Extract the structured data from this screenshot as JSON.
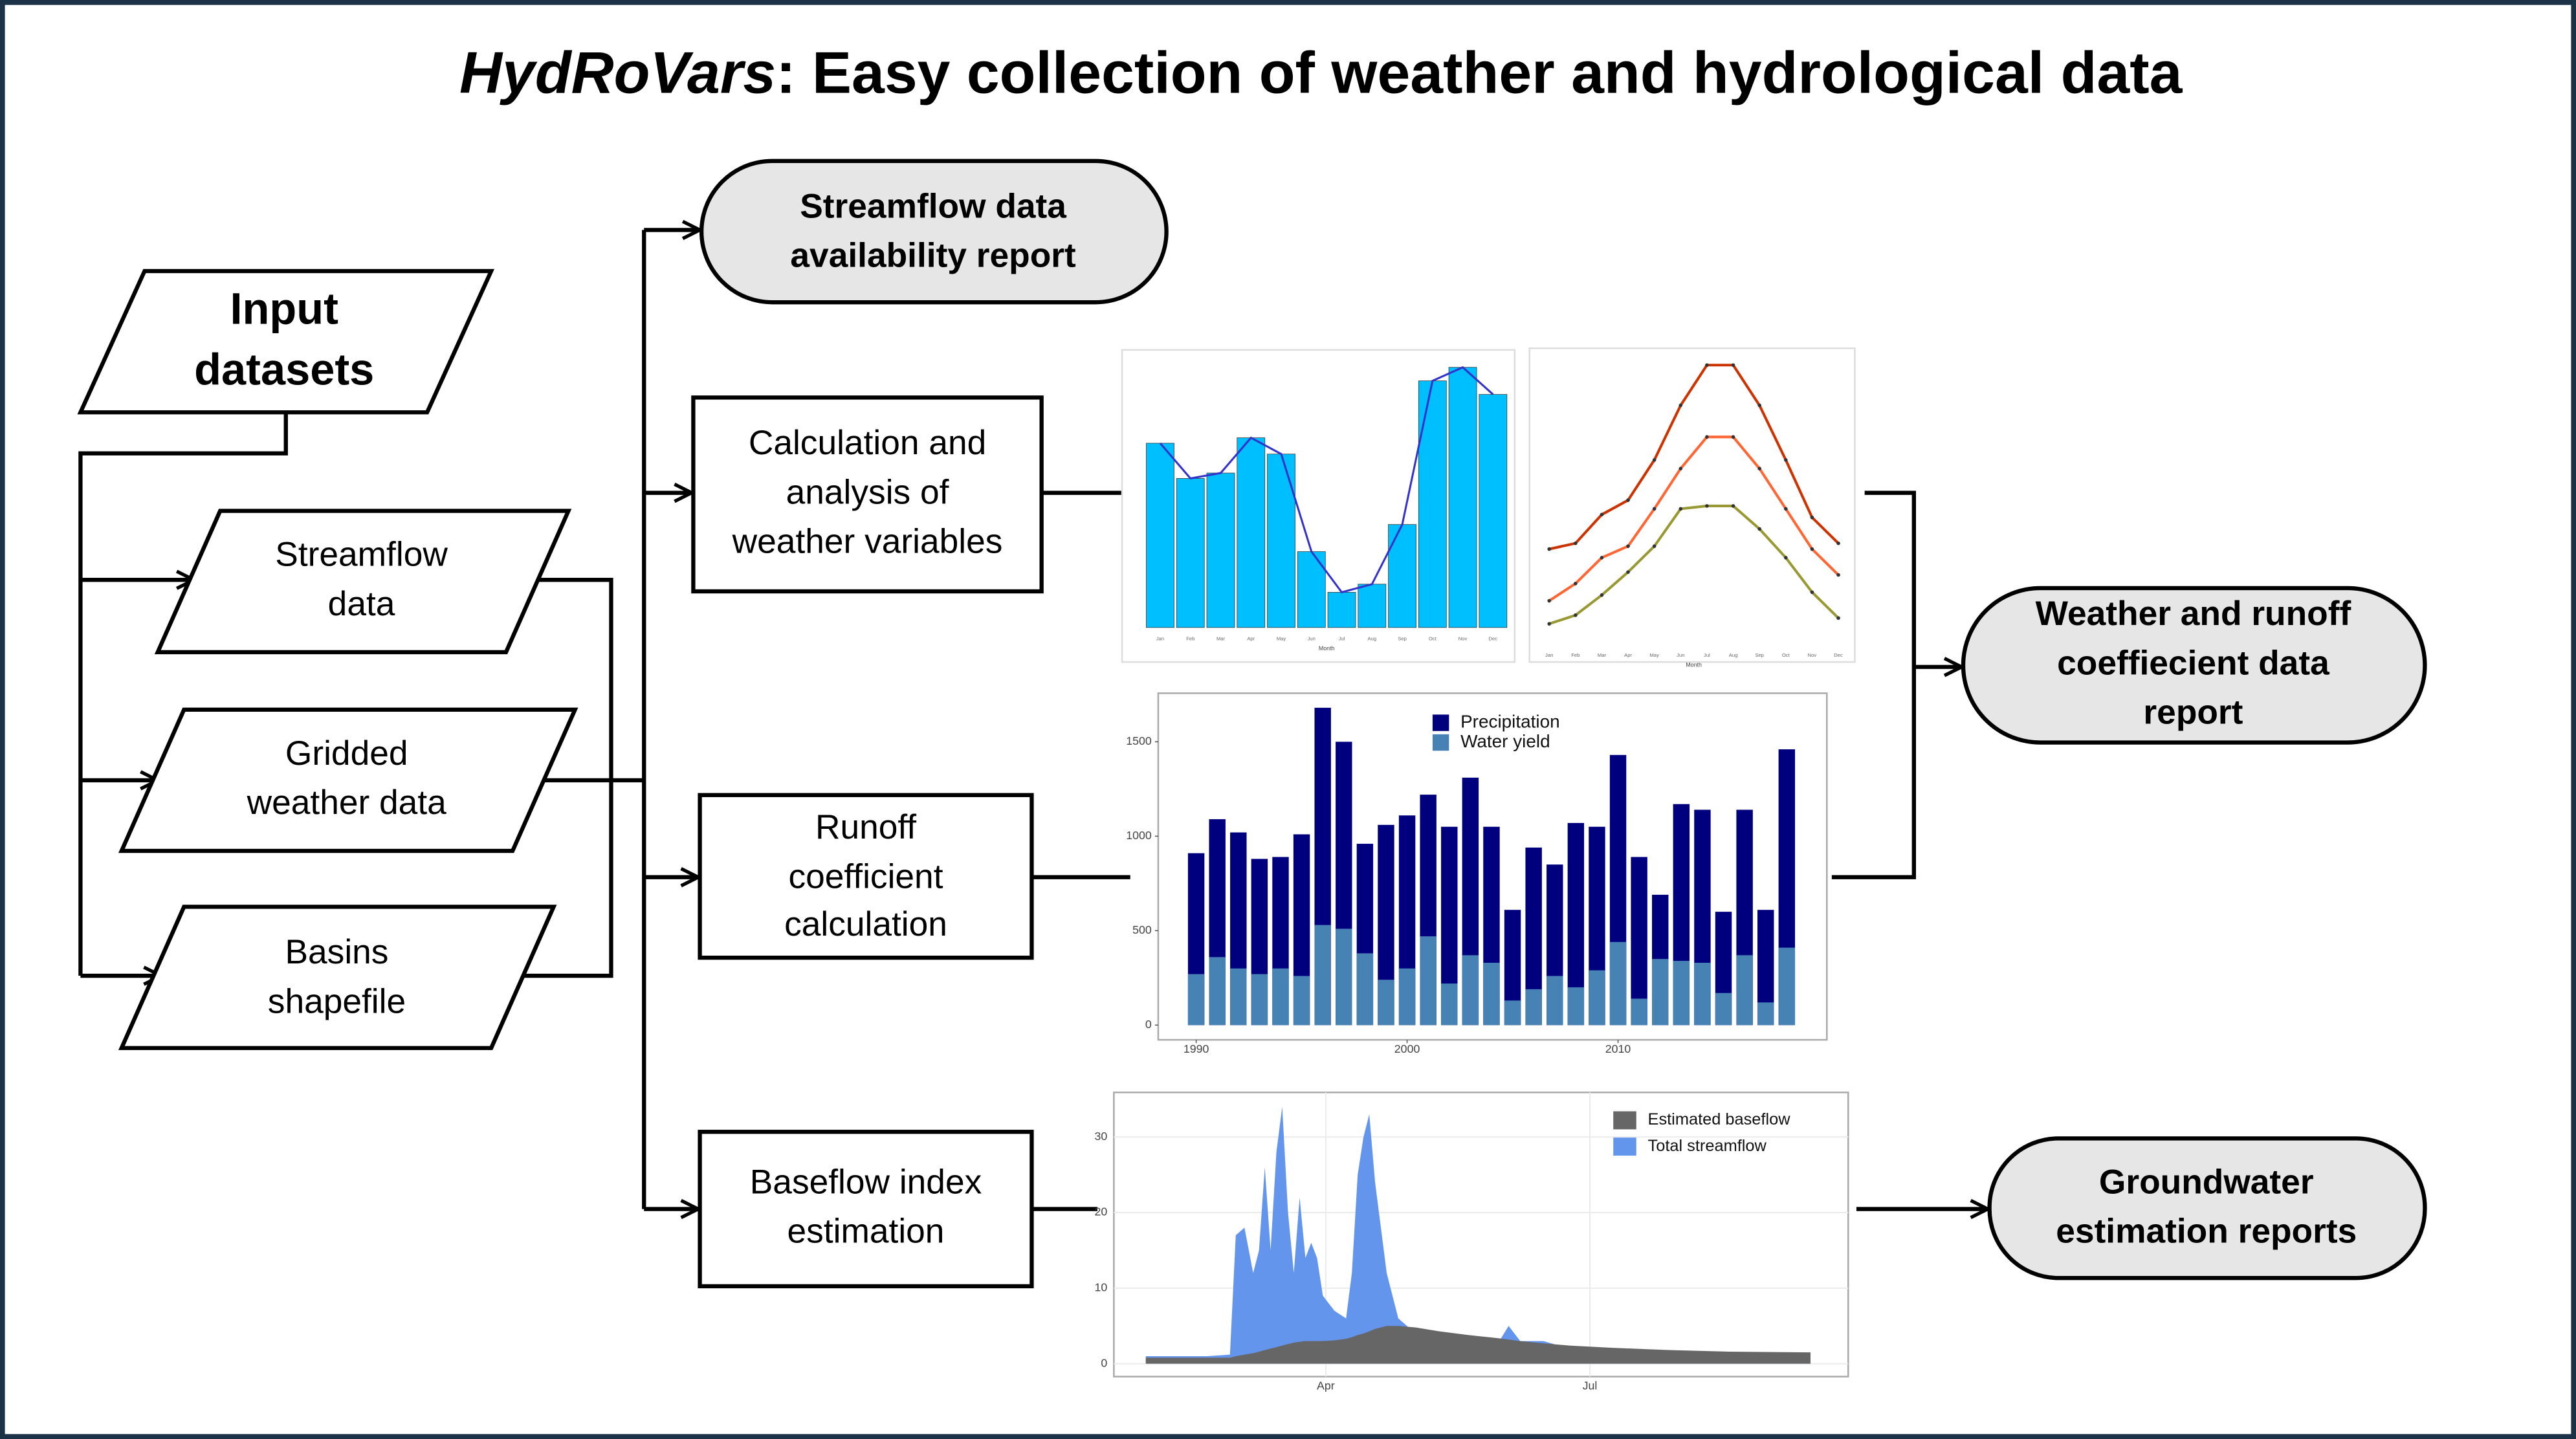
{
  "title": {
    "emphasis": "HydRoVars",
    "text": ": Easy collection of weather and hydrological data"
  },
  "nodes": {
    "input": [
      "Input",
      "datasets"
    ],
    "streamflow": [
      "Streamflow",
      "data"
    ],
    "gridded": [
      "Gridded",
      "weather data"
    ],
    "basins": [
      "Basins",
      "shapefile"
    ],
    "availability_report": [
      "Streamflow data",
      "availability report"
    ],
    "weather_calc": [
      "Calculation and",
      "analysis of",
      "weather variables"
    ],
    "runoff_calc": [
      "Runoff",
      "coefficient",
      "calculation"
    ],
    "baseflow_calc": [
      "Baseflow index",
      "estimation"
    ],
    "weather_report": [
      "Weather and runoff",
      "coeffiecient data",
      "report"
    ],
    "groundwater_report": [
      "Groundwater",
      "estimation reports"
    ]
  },
  "chart_data": [
    {
      "type": "bar",
      "categories": [
        "Jan",
        "Feb",
        "Mar",
        "Apr",
        "May",
        "Jun",
        "Jul",
        "Aug",
        "Sep",
        "Oct",
        "Nov",
        "Dec"
      ],
      "x_label": "Month",
      "values": [
        68,
        55,
        57,
        70,
        64,
        28,
        13,
        16,
        38,
        91,
        96,
        86
      ],
      "color": "#00bfff",
      "line_overlay": true,
      "line_color": "#3333cc",
      "ylim": [
        0,
        100
      ]
    },
    {
      "type": "line",
      "categories": [
        "Jan",
        "Feb",
        "Mar",
        "Apr",
        "May",
        "Jun",
        "Jul",
        "Aug",
        "Sep",
        "Oct",
        "Nov",
        "Dec"
      ],
      "x_label": "Month",
      "series": [
        {
          "color": "#cc3300",
          "values": [
            33,
            35,
            45,
            50,
            64,
            83,
            97,
            97,
            83,
            64,
            44,
            35
          ]
        },
        {
          "color": "#ff6633",
          "values": [
            15,
            21,
            30,
            34,
            47,
            61,
            72,
            72,
            61,
            47,
            33,
            24
          ]
        },
        {
          "color": "#999933",
          "values": [
            7,
            10,
            17,
            25,
            34,
            47,
            48,
            48,
            40,
            30,
            18,
            9
          ]
        }
      ],
      "ylim": [
        0,
        100
      ]
    },
    {
      "type": "bar",
      "x": [
        1990,
        1991,
        1992,
        1993,
        1994,
        1995,
        1996,
        1997,
        1998,
        1999,
        2000,
        2001,
        2002,
        2003,
        2004,
        2005,
        2006,
        2007,
        2008,
        2009,
        2010,
        2011,
        2012,
        2013,
        2014,
        2015,
        2016,
        2017,
        2018
      ],
      "series": [
        {
          "name": "Precipitation",
          "color": "#00007f",
          "values": [
            910,
            1090,
            1020,
            880,
            890,
            1010,
            1680,
            1500,
            960,
            1060,
            1110,
            1220,
            1050,
            1310,
            1050,
            610,
            940,
            850,
            1070,
            1050,
            1430,
            890,
            690,
            1170,
            1140,
            600,
            1140,
            610,
            1460
          ]
        },
        {
          "name": "Water yield",
          "color": "#4682b4",
          "values": [
            270,
            360,
            300,
            270,
            300,
            260,
            530,
            510,
            380,
            240,
            300,
            470,
            220,
            370,
            330,
            130,
            190,
            260,
            200,
            290,
            440,
            140,
            350,
            340,
            330,
            170,
            370,
            120,
            410
          ]
        }
      ],
      "xlim": [
        1988.2,
        2019.9
      ],
      "xticks": [
        1990,
        2000,
        2010
      ],
      "ylim": [
        -78,
        1757
      ],
      "yticks": [
        0,
        500,
        1000,
        1500
      ]
    },
    {
      "type": "area",
      "x": [
        29,
        40,
        50,
        58,
        60,
        63,
        66,
        68,
        70,
        72,
        74,
        76,
        78,
        80,
        82,
        84,
        86,
        88,
        90,
        94,
        98,
        100,
        102,
        104,
        106,
        108,
        112,
        116,
        122,
        130,
        140,
        150,
        154,
        158,
        166,
        175,
        190,
        210,
        230,
        258
      ],
      "series": [
        {
          "name": "Estimated baseflow",
          "color": "#666666",
          "values": [
            0.8,
            0.8,
            0.8,
            0.8,
            1,
            1.2,
            1.4,
            1.6,
            1.8,
            2,
            2.2,
            2.4,
            2.6,
            2.8,
            2.9,
            3,
            3,
            3,
            3,
            3.1,
            3.3,
            3.5,
            3.8,
            4,
            4.3,
            4.6,
            5,
            5,
            4.8,
            4.3,
            3.8,
            3.4,
            3.2,
            3,
            2.7,
            2.4,
            2.1,
            1.8,
            1.6,
            1.5
          ]
        },
        {
          "name": "Total streamflow",
          "color": "#6495ed",
          "values": [
            1,
            1,
            1,
            1.2,
            17,
            18,
            12,
            15,
            26,
            15,
            28,
            34,
            20,
            12,
            22,
            14,
            16,
            14,
            9,
            7,
            6,
            12,
            25,
            30,
            33,
            24,
            12,
            6,
            4,
            3,
            3,
            2.5,
            5,
            3,
            3,
            2,
            1.8,
            1.6,
            1.5,
            1.4
          ]
        }
      ],
      "xlim": [
        18,
        271
      ],
      "xticks": [
        {
          "value": 91,
          "label": "Apr"
        },
        {
          "value": 182,
          "label": "Jul"
        }
      ],
      "ylim": [
        -1.7,
        35.9
      ],
      "yticks": [
        0,
        10,
        20,
        30
      ],
      "grid": true
    }
  ]
}
